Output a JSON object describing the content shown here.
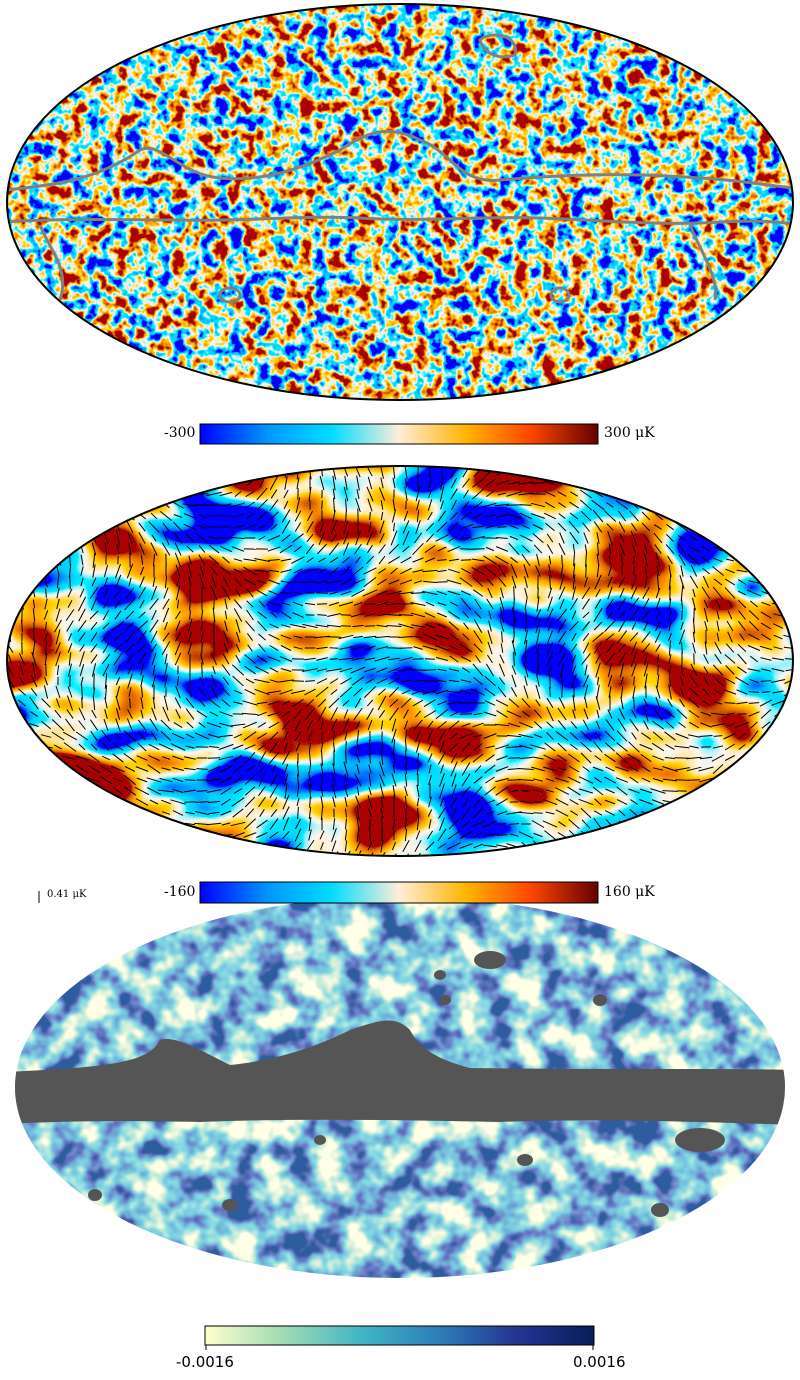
{
  "panels": [
    {
      "name": "temperature-map",
      "colorbar": {
        "min_label": "-300",
        "max_label": "300 μK",
        "min": -300,
        "max": 300
      },
      "colors": [
        "#0000ff",
        "#0096ff",
        "#00dcff",
        "#ffedd9",
        "#ffb400",
        "#ff4600",
        "#640000"
      ]
    },
    {
      "name": "polarization-map",
      "colorbar": {
        "min_label": "-160",
        "max_label": "160 μK",
        "min": -160,
        "max": 160
      },
      "polarization_scale_label": "0.41 μK",
      "colors": [
        "#0000ff",
        "#0096ff",
        "#00dcff",
        "#ffedd9",
        "#ffb400",
        "#ff4600",
        "#640000"
      ]
    },
    {
      "name": "masked-map",
      "colorbar": {
        "min_label": "-0.0016",
        "max_label": "0.0016",
        "min": -0.0016,
        "max": 0.0016
      },
      "mask_color": "#555555",
      "colors": [
        "#ffffcc",
        "#a1dab4",
        "#41b6c4",
        "#2c7fb8",
        "#253494",
        "#081d58"
      ]
    }
  ]
}
